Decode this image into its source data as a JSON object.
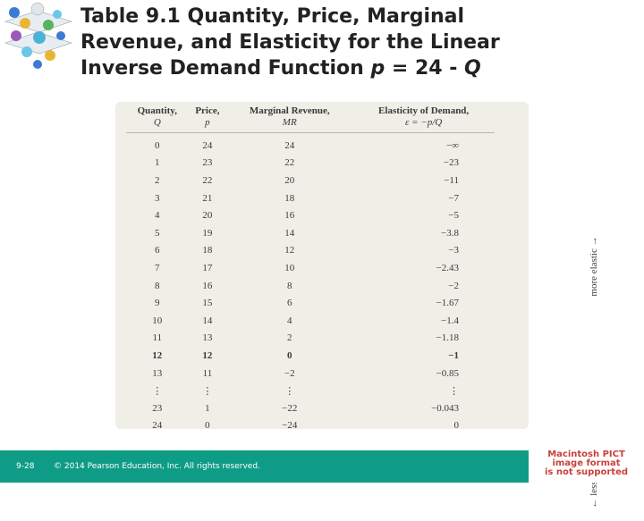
{
  "title": {
    "line1": "Table 9.1  Quantity, Price, Marginal",
    "line2": "Revenue, and Elasticity for the Linear",
    "line3_prefix": "Inverse Demand Function ",
    "line3_p": "p",
    "line3_eq": " = 24 - ",
    "line3_q": "Q"
  },
  "table": {
    "headers": [
      {
        "label": "Quantity,",
        "sub": "Q"
      },
      {
        "label": "Price,",
        "sub": "p"
      },
      {
        "label": "Marginal Revenue,",
        "sub": "MR"
      },
      {
        "label": "Elasticity of Demand,",
        "sub": "ε = −p/Q"
      }
    ],
    "rows": [
      [
        "0",
        "24",
        "24",
        "−∞"
      ],
      [
        "1",
        "23",
        "22",
        "−23"
      ],
      [
        "2",
        "22",
        "20",
        "−11"
      ],
      [
        "3",
        "21",
        "18",
        "−7"
      ],
      [
        "4",
        "20",
        "16",
        "−5"
      ],
      [
        "5",
        "19",
        "14",
        "−3.8"
      ],
      [
        "6",
        "18",
        "12",
        "−3"
      ],
      [
        "7",
        "17",
        "10",
        "−2.43"
      ],
      [
        "8",
        "16",
        "8",
        "−2"
      ],
      [
        "9",
        "15",
        "6",
        "−1.67"
      ],
      [
        "10",
        "14",
        "4",
        "−1.4"
      ],
      [
        "11",
        "13",
        "2",
        "−1.18"
      ],
      [
        "12",
        "12",
        "0",
        "−1"
      ],
      [
        "13",
        "11",
        "−2",
        "−0.85"
      ],
      [
        "⋮",
        "⋮",
        "⋮",
        "⋮"
      ],
      [
        "23",
        "1",
        "−22",
        "−0.043"
      ],
      [
        "24",
        "0",
        "−24",
        "0"
      ]
    ],
    "highlight_row_index": 12,
    "side_note_top": "more elastic →",
    "side_note_bottom": "← less elastic"
  },
  "footer": {
    "page": "9-28",
    "copyright": "© 2014 Pearson Education, Inc. All rights reserved."
  },
  "pict_notice": {
    "line1": "Macintosh PICT",
    "line2": "image format",
    "line3": "is not supported"
  },
  "colors": {
    "footer_bg": "#0f9c86",
    "table_bg": "#efeee7",
    "pict_text": "#c9413c"
  }
}
